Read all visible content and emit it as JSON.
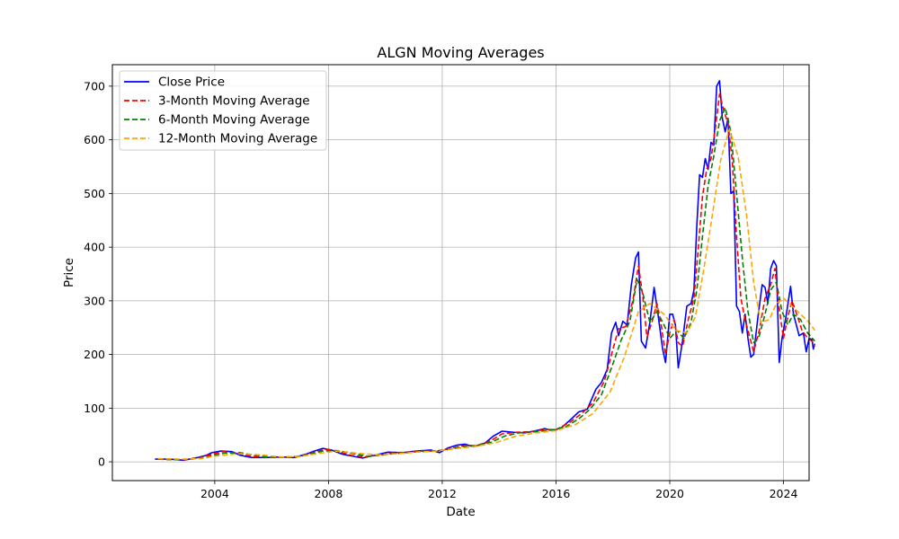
{
  "chart_data": {
    "type": "line",
    "title": "ALGN Moving Averages",
    "xlabel": "Date",
    "ylabel": "Price",
    "xlim": [
      2000.4,
      2024.9
    ],
    "ylim": [
      -35,
      740
    ],
    "x_ticks": [
      2004,
      2008,
      2012,
      2016,
      2020,
      2024
    ],
    "x_tick_labels": [
      "2004",
      "2008",
      "2012",
      "2016",
      "2020",
      "2024"
    ],
    "y_ticks": [
      0,
      100,
      200,
      300,
      400,
      500,
      600,
      700
    ],
    "y_tick_labels": [
      "0",
      "100",
      "200",
      "300",
      "400",
      "500",
      "600",
      "700"
    ],
    "grid": true,
    "legend_position": "top-left",
    "series": [
      {
        "name": "Close Price",
        "color": "#0000ff",
        "style": "solid",
        "points": [
          [
            2001.9,
            5
          ],
          [
            2002.4,
            5
          ],
          [
            2002.9,
            3
          ],
          [
            2003.4,
            8
          ],
          [
            2003.7,
            12
          ],
          [
            2003.9,
            17
          ],
          [
            2004.2,
            20
          ],
          [
            2004.6,
            19
          ],
          [
            2004.9,
            12
          ],
          [
            2005.3,
            8
          ],
          [
            2005.8,
            8
          ],
          [
            2006.3,
            9
          ],
          [
            2006.8,
            8
          ],
          [
            2007.2,
            14
          ],
          [
            2007.5,
            20
          ],
          [
            2007.8,
            25
          ],
          [
            2008.1,
            22
          ],
          [
            2008.5,
            14
          ],
          [
            2008.9,
            10
          ],
          [
            2009.2,
            7
          ],
          [
            2009.6,
            12
          ],
          [
            2010.1,
            18
          ],
          [
            2010.6,
            17
          ],
          [
            2011.1,
            20
          ],
          [
            2011.6,
            22
          ],
          [
            2011.9,
            17
          ],
          [
            2012.2,
            26
          ],
          [
            2012.5,
            31
          ],
          [
            2012.8,
            33
          ],
          [
            2013.1,
            28
          ],
          [
            2013.5,
            35
          ],
          [
            2013.8,
            48
          ],
          [
            2014.1,
            57
          ],
          [
            2014.5,
            55
          ],
          [
            2014.9,
            54
          ],
          [
            2015.3,
            58
          ],
          [
            2015.6,
            62
          ],
          [
            2015.9,
            58
          ],
          [
            2016.2,
            64
          ],
          [
            2016.5,
            78
          ],
          [
            2016.8,
            93
          ],
          [
            2017.1,
            98
          ],
          [
            2017.4,
            135
          ],
          [
            2017.6,
            148
          ],
          [
            2017.8,
            172
          ],
          [
            2017.95,
            240
          ],
          [
            2018.1,
            260
          ],
          [
            2018.2,
            235
          ],
          [
            2018.35,
            262
          ],
          [
            2018.5,
            255
          ],
          [
            2018.65,
            330
          ],
          [
            2018.8,
            380
          ],
          [
            2018.9,
            391
          ],
          [
            2019.0,
            225
          ],
          [
            2019.15,
            212
          ],
          [
            2019.3,
            260
          ],
          [
            2019.45,
            325
          ],
          [
            2019.6,
            270
          ],
          [
            2019.75,
            210
          ],
          [
            2019.85,
            185
          ],
          [
            2020.0,
            275
          ],
          [
            2020.1,
            275
          ],
          [
            2020.2,
            255
          ],
          [
            2020.3,
            175
          ],
          [
            2020.45,
            225
          ],
          [
            2020.6,
            290
          ],
          [
            2020.75,
            295
          ],
          [
            2020.85,
            320
          ],
          [
            2020.95,
            440
          ],
          [
            2021.05,
            535
          ],
          [
            2021.15,
            530
          ],
          [
            2021.25,
            565
          ],
          [
            2021.35,
            545
          ],
          [
            2021.45,
            595
          ],
          [
            2021.55,
            590
          ],
          [
            2021.65,
            700
          ],
          [
            2021.75,
            710
          ],
          [
            2021.85,
            640
          ],
          [
            2021.95,
            615
          ],
          [
            2022.05,
            640
          ],
          [
            2022.15,
            500
          ],
          [
            2022.25,
            505
          ],
          [
            2022.35,
            290
          ],
          [
            2022.45,
            280
          ],
          [
            2022.55,
            240
          ],
          [
            2022.65,
            275
          ],
          [
            2022.75,
            230
          ],
          [
            2022.85,
            195
          ],
          [
            2022.95,
            200
          ],
          [
            2023.1,
            270
          ],
          [
            2023.25,
            330
          ],
          [
            2023.35,
            325
          ],
          [
            2023.45,
            295
          ],
          [
            2023.55,
            360
          ],
          [
            2023.65,
            375
          ],
          [
            2023.75,
            365
          ],
          [
            2023.85,
            185
          ],
          [
            2023.95,
            230
          ],
          [
            2024.1,
            275
          ],
          [
            2024.25,
            327
          ],
          [
            2024.35,
            275
          ],
          [
            2024.45,
            255
          ],
          [
            2024.55,
            235
          ],
          [
            2024.7,
            240
          ],
          [
            2024.8,
            205
          ],
          [
            2024.9,
            230
          ],
          [
            2025.0,
            228
          ],
          [
            2025.05,
            210
          ],
          [
            2025.1,
            220
          ]
        ]
      },
      {
        "name": "3-Month Moving Average",
        "color": "#ff0000",
        "style": "dashed",
        "points": [
          [
            2002.0,
            5
          ],
          [
            2002.5,
            4
          ],
          [
            2003.0,
            4
          ],
          [
            2003.5,
            8
          ],
          [
            2003.9,
            14
          ],
          [
            2004.3,
            19
          ],
          [
            2004.8,
            16
          ],
          [
            2005.3,
            10
          ],
          [
            2005.9,
            8
          ],
          [
            2006.5,
            9
          ],
          [
            2007.0,
            10
          ],
          [
            2007.5,
            18
          ],
          [
            2007.9,
            23
          ],
          [
            2008.3,
            20
          ],
          [
            2008.8,
            12
          ],
          [
            2009.3,
            9
          ],
          [
            2009.8,
            13
          ],
          [
            2010.3,
            17
          ],
          [
            2010.8,
            18
          ],
          [
            2011.3,
            20
          ],
          [
            2011.8,
            20
          ],
          [
            2012.3,
            25
          ],
          [
            2012.8,
            31
          ],
          [
            2013.2,
            30
          ],
          [
            2013.7,
            39
          ],
          [
            2014.1,
            52
          ],
          [
            2014.6,
            55
          ],
          [
            2015.1,
            56
          ],
          [
            2015.6,
            60
          ],
          [
            2016.0,
            60
          ],
          [
            2016.5,
            74
          ],
          [
            2016.9,
            90
          ],
          [
            2017.3,
            110
          ],
          [
            2017.7,
            150
          ],
          [
            2017.95,
            200
          ],
          [
            2018.2,
            248
          ],
          [
            2018.45,
            252
          ],
          [
            2018.7,
            300
          ],
          [
            2018.9,
            365
          ],
          [
            2019.05,
            310
          ],
          [
            2019.2,
            232
          ],
          [
            2019.4,
            265
          ],
          [
            2019.55,
            295
          ],
          [
            2019.7,
            255
          ],
          [
            2019.85,
            200
          ],
          [
            2020.0,
            240
          ],
          [
            2020.15,
            265
          ],
          [
            2020.3,
            222
          ],
          [
            2020.45,
            215
          ],
          [
            2020.65,
            265
          ],
          [
            2020.85,
            305
          ],
          [
            2021.0,
            395
          ],
          [
            2021.15,
            495
          ],
          [
            2021.3,
            545
          ],
          [
            2021.45,
            565
          ],
          [
            2021.6,
            620
          ],
          [
            2021.75,
            685
          ],
          [
            2021.9,
            655
          ],
          [
            2022.05,
            630
          ],
          [
            2022.2,
            560
          ],
          [
            2022.35,
            420
          ],
          [
            2022.5,
            305
          ],
          [
            2022.65,
            265
          ],
          [
            2022.8,
            235
          ],
          [
            2022.95,
            205
          ],
          [
            2023.15,
            245
          ],
          [
            2023.35,
            305
          ],
          [
            2023.55,
            330
          ],
          [
            2023.7,
            360
          ],
          [
            2023.85,
            285
          ],
          [
            2024.0,
            230
          ],
          [
            2024.15,
            270
          ],
          [
            2024.3,
            300
          ],
          [
            2024.5,
            270
          ],
          [
            2024.65,
            245
          ],
          [
            2024.85,
            230
          ],
          [
            2025.0,
            225
          ],
          [
            2025.1,
            215
          ]
        ]
      },
      {
        "name": "6-Month Moving Average",
        "color": "#008000",
        "style": "dashed",
        "points": [
          [
            2002.0,
            5
          ],
          [
            2002.6,
            4
          ],
          [
            2003.2,
            5
          ],
          [
            2003.8,
            10
          ],
          [
            2004.3,
            16
          ],
          [
            2004.9,
            17
          ],
          [
            2005.5,
            11
          ],
          [
            2006.1,
            8
          ],
          [
            2006.7,
            9
          ],
          [
            2007.2,
            12
          ],
          [
            2007.8,
            20
          ],
          [
            2008.3,
            21
          ],
          [
            2008.9,
            15
          ],
          [
            2009.4,
            10
          ],
          [
            2009.9,
            13
          ],
          [
            2010.5,
            16
          ],
          [
            2011.0,
            18
          ],
          [
            2011.6,
            20
          ],
          [
            2012.1,
            22
          ],
          [
            2012.7,
            28
          ],
          [
            2013.2,
            30
          ],
          [
            2013.7,
            36
          ],
          [
            2014.2,
            48
          ],
          [
            2014.7,
            54
          ],
          [
            2015.3,
            56
          ],
          [
            2015.8,
            59
          ],
          [
            2016.3,
            64
          ],
          [
            2016.8,
            80
          ],
          [
            2017.2,
            98
          ],
          [
            2017.6,
            125
          ],
          [
            2017.95,
            175
          ],
          [
            2018.3,
            228
          ],
          [
            2018.6,
            262
          ],
          [
            2018.85,
            340
          ],
          [
            2019.05,
            315
          ],
          [
            2019.3,
            260
          ],
          [
            2019.55,
            280
          ],
          [
            2019.8,
            255
          ],
          [
            2020.0,
            230
          ],
          [
            2020.25,
            245
          ],
          [
            2020.5,
            230
          ],
          [
            2020.75,
            260
          ],
          [
            2020.95,
            320
          ],
          [
            2021.15,
            420
          ],
          [
            2021.35,
            515
          ],
          [
            2021.55,
            570
          ],
          [
            2021.75,
            635
          ],
          [
            2021.95,
            660
          ],
          [
            2022.15,
            615
          ],
          [
            2022.35,
            500
          ],
          [
            2022.55,
            380
          ],
          [
            2022.75,
            280
          ],
          [
            2022.95,
            222
          ],
          [
            2023.15,
            235
          ],
          [
            2023.35,
            275
          ],
          [
            2023.55,
            320
          ],
          [
            2023.75,
            335
          ],
          [
            2023.95,
            280
          ],
          [
            2024.15,
            255
          ],
          [
            2024.35,
            275
          ],
          [
            2024.6,
            265
          ],
          [
            2024.85,
            240
          ],
          [
            2025.1,
            225
          ]
        ]
      },
      {
        "name": "12-Month Moving Average",
        "color": "#ffa500",
        "style": "dashed",
        "points": [
          [
            2002.0,
            6
          ],
          [
            2002.8,
            5
          ],
          [
            2003.5,
            6
          ],
          [
            2004.2,
            12
          ],
          [
            2004.9,
            15
          ],
          [
            2005.6,
            13
          ],
          [
            2006.3,
            9
          ],
          [
            2007.0,
            10
          ],
          [
            2007.7,
            16
          ],
          [
            2008.3,
            20
          ],
          [
            2009.0,
            16
          ],
          [
            2009.7,
            13
          ],
          [
            2010.4,
            15
          ],
          [
            2011.1,
            18
          ],
          [
            2011.8,
            20
          ],
          [
            2012.5,
            25
          ],
          [
            2013.2,
            29
          ],
          [
            2013.9,
            36
          ],
          [
            2014.6,
            48
          ],
          [
            2015.3,
            54
          ],
          [
            2016.0,
            58
          ],
          [
            2016.7,
            70
          ],
          [
            2017.3,
            90
          ],
          [
            2017.9,
            130
          ],
          [
            2018.4,
            195
          ],
          [
            2018.9,
            280
          ],
          [
            2019.3,
            295
          ],
          [
            2019.8,
            275
          ],
          [
            2020.2,
            245
          ],
          [
            2020.6,
            240
          ],
          [
            2020.9,
            270
          ],
          [
            2021.2,
            360
          ],
          [
            2021.5,
            460
          ],
          [
            2021.8,
            565
          ],
          [
            2022.1,
            620
          ],
          [
            2022.4,
            570
          ],
          [
            2022.7,
            460
          ],
          [
            2022.95,
            335
          ],
          [
            2023.2,
            260
          ],
          [
            2023.5,
            265
          ],
          [
            2023.75,
            295
          ],
          [
            2024.0,
            305
          ],
          [
            2024.3,
            290
          ],
          [
            2024.6,
            275
          ],
          [
            2024.9,
            260
          ],
          [
            2025.1,
            245
          ]
        ]
      }
    ]
  }
}
